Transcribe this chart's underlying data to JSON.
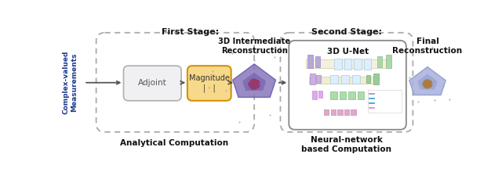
{
  "fig_width": 6.4,
  "fig_height": 2.2,
  "dpi": 100,
  "bg_color": "#ffffff",
  "title_first": "First Stage:",
  "title_second": "Second Stage:",
  "label_analytical": "Analytical Computation",
  "label_neural": "Neural-network\nbased Computation",
  "label_input": "Complex-valued\nMeasurements",
  "label_adjoint": "Adjoint",
  "label_magnitude": "Magnitude\n| · |",
  "label_3d_intermediate": "3D Intermediate\nReconstruction",
  "label_unet": "3D U-Net",
  "label_final": "Final\nReconstruction",
  "title_color": "#111111",
  "box_edge_gray": "#b0b0b0",
  "box_fill_gray": "#f0f0f2",
  "box_edge_orange": "#d4920a",
  "box_fill_orange": "#f8d98a",
  "arrow_color": "#555555",
  "dashed_color": "#aaaaaa",
  "text_blue": "#1a3a8c",
  "text_gray": "#555555"
}
